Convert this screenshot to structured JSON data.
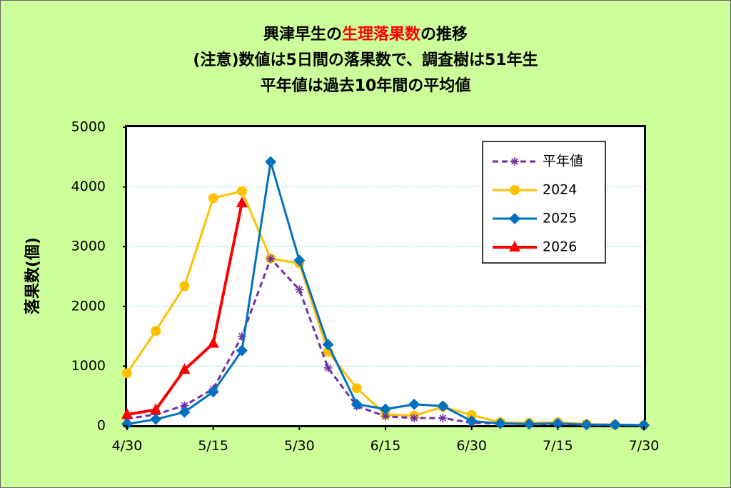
{
  "chart_data": {
    "type": "line",
    "title_lines": [
      {
        "parts": [
          {
            "text": "興津早生の",
            "color": "#000000"
          },
          {
            "text": "生理落果数",
            "color": "#ff0000"
          },
          {
            "text": "の推移",
            "color": "#000000"
          }
        ]
      },
      {
        "parts": [
          {
            "text": "(注意)数値は5日間の落果数で、調査樹は51年生",
            "color": "#000000"
          }
        ]
      },
      {
        "parts": [
          {
            "text": "平年値は過去10年間の平均値",
            "color": "#000000"
          }
        ]
      }
    ],
    "ylabel": "落果数(個)",
    "ylim": [
      0,
      5000
    ],
    "yticks": [
      0,
      1000,
      2000,
      3000,
      4000,
      5000
    ],
    "xlim": [
      0,
      18
    ],
    "xticks": [
      {
        "x": 0,
        "label": "4/30"
      },
      {
        "x": 3,
        "label": "5/15"
      },
      {
        "x": 6,
        "label": "5/30"
      },
      {
        "x": 9,
        "label": "6/15"
      },
      {
        "x": 12,
        "label": "6/30"
      },
      {
        "x": 15,
        "label": "7/15"
      },
      {
        "x": 18,
        "label": "7/30"
      }
    ],
    "grid": true,
    "legend_position": "top-right",
    "series": [
      {
        "name": "平年値",
        "color": "#7030a0",
        "marker": "star",
        "dashed": true,
        "x": [
          0,
          1,
          2,
          3,
          4,
          5,
          6,
          7,
          8,
          9,
          10,
          11,
          12,
          13,
          14,
          15,
          16,
          17,
          18
        ],
        "values": [
          120,
          190,
          340,
          620,
          1500,
          2800,
          2280,
          970,
          330,
          160,
          130,
          130,
          50,
          40,
          30,
          30,
          20,
          10,
          10
        ]
      },
      {
        "name": "2024",
        "color": "#ffc000",
        "marker": "circle",
        "dashed": false,
        "x": [
          0,
          1,
          2,
          3,
          4,
          5,
          6,
          7,
          8,
          9,
          10,
          11,
          12,
          13,
          14,
          15,
          16,
          17,
          18
        ],
        "values": [
          880,
          1590,
          2340,
          3810,
          3930,
          2800,
          2720,
          1240,
          630,
          190,
          170,
          320,
          180,
          60,
          50,
          60,
          30,
          20,
          10
        ]
      },
      {
        "name": "2025",
        "color": "#0070c0",
        "marker": "diamond",
        "dashed": false,
        "x": [
          0,
          1,
          2,
          3,
          4,
          5,
          6,
          7,
          8,
          9,
          10,
          11,
          12,
          13,
          14,
          15,
          16,
          17,
          18
        ],
        "values": [
          30,
          110,
          230,
          570,
          1260,
          4420,
          2770,
          1360,
          360,
          280,
          360,
          330,
          80,
          40,
          30,
          40,
          20,
          20,
          10
        ]
      },
      {
        "name": "2026",
        "color": "#ff0000",
        "marker": "triangle",
        "dashed": false,
        "x": [
          0,
          1,
          2,
          3,
          4
        ],
        "values": [
          190,
          270,
          940,
          1380,
          3730
        ]
      }
    ]
  }
}
